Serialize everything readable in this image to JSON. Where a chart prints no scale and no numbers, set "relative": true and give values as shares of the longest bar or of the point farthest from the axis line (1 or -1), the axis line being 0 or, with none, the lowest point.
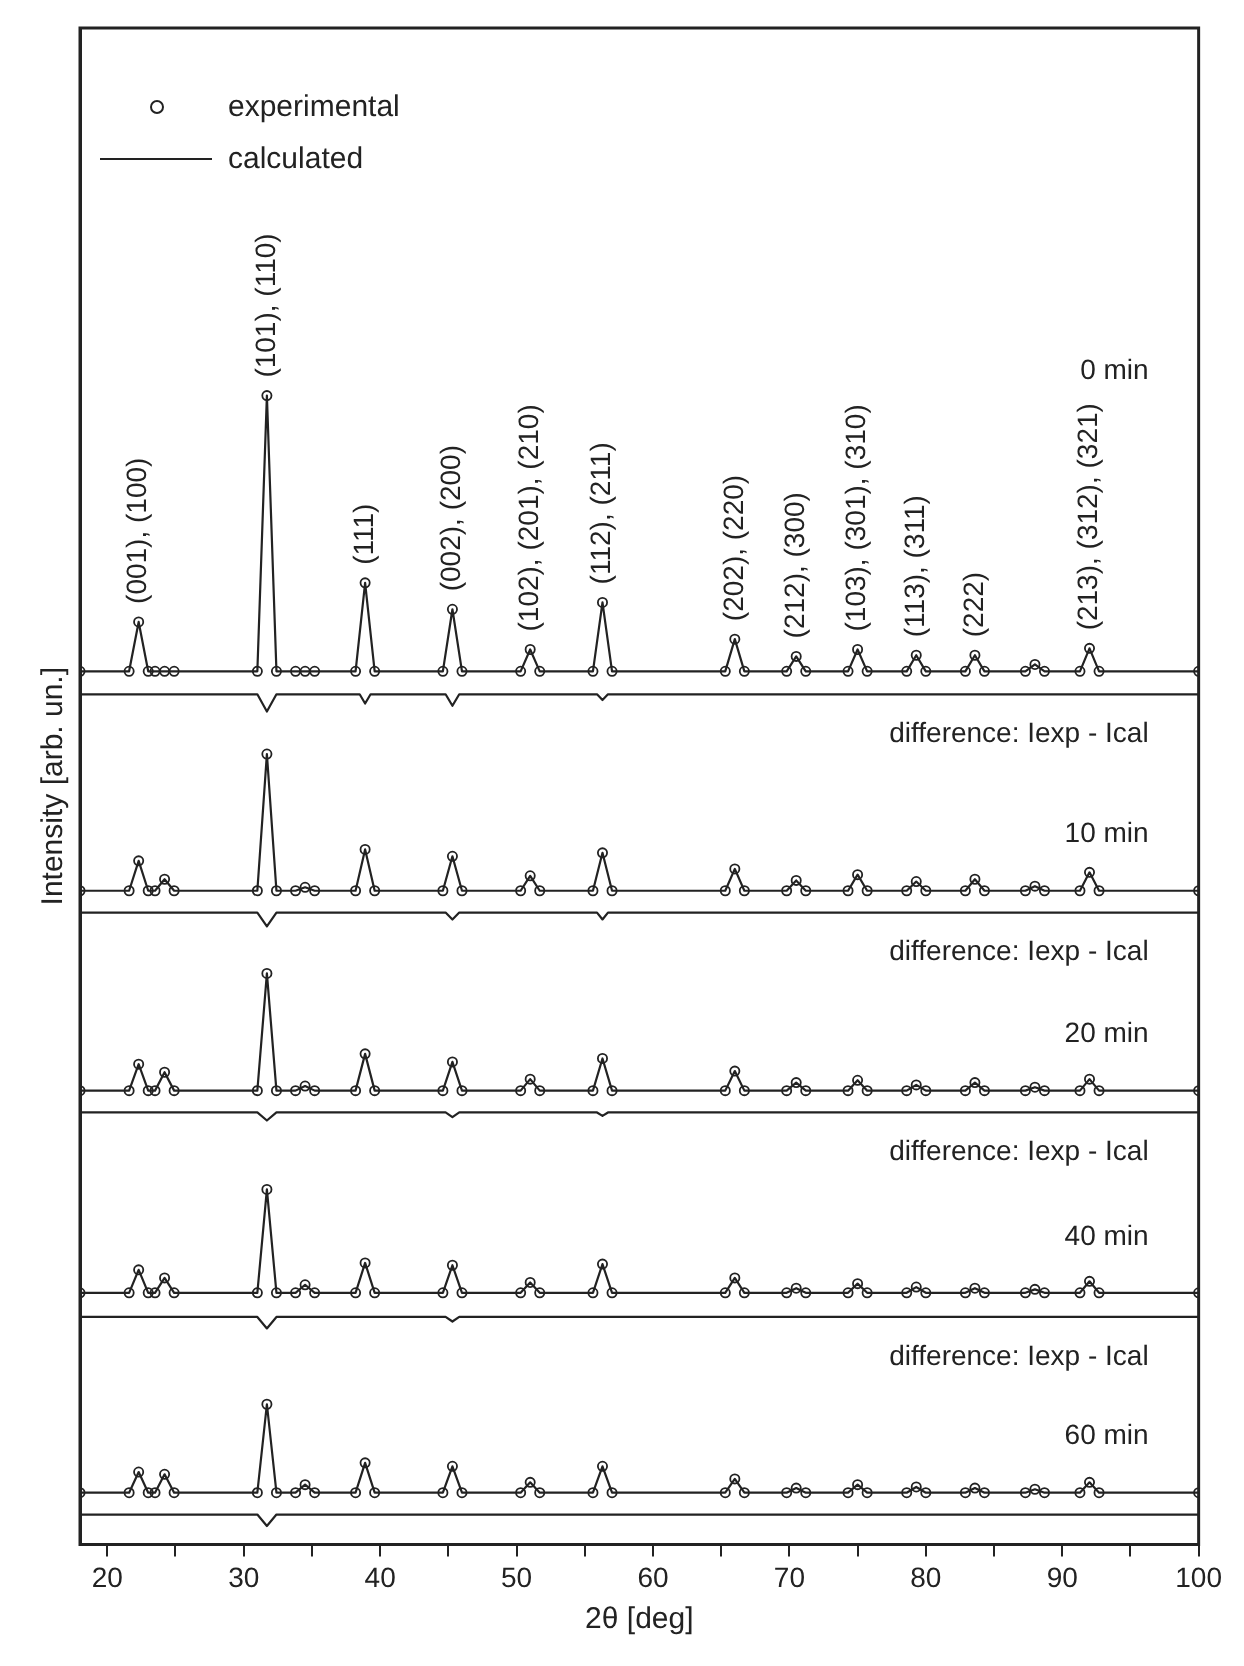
{
  "chart_data": {
    "type": "line",
    "xlabel": "2θ [deg]",
    "ylabel": "Intensity [arb. un.]",
    "relative": true,
    "xlim": [
      18,
      100
    ],
    "xticks": [
      {
        "value": 20,
        "label": "20"
      },
      {
        "value": 25,
        "label": null
      },
      {
        "value": 30,
        "label": "30"
      },
      {
        "value": 35,
        "label": null
      },
      {
        "value": 40,
        "label": "40"
      },
      {
        "value": 45,
        "label": null
      },
      {
        "value": 50,
        "label": "50"
      },
      {
        "value": 55,
        "label": null
      },
      {
        "value": 60,
        "label": "60"
      },
      {
        "value": 65,
        "label": null
      },
      {
        "value": 70,
        "label": "70"
      },
      {
        "value": 75,
        "label": null
      },
      {
        "value": 80,
        "label": "80"
      },
      {
        "value": 85,
        "label": null
      },
      {
        "value": 90,
        "label": "90"
      },
      {
        "value": 95,
        "label": null
      },
      {
        "value": 100,
        "label": "100"
      }
    ],
    "grid": false,
    "legend": "top left",
    "x": [
      18,
      21.6,
      22.3,
      23.0,
      23.5,
      24.2,
      24.9,
      31.0,
      31.7,
      32.4,
      33.8,
      34.5,
      35.2,
      38.2,
      38.9,
      39.6,
      44.6,
      45.3,
      46.0,
      50.3,
      51.0,
      51.7,
      55.6,
      56.3,
      57.0,
      65.3,
      66.0,
      66.7,
      69.8,
      70.5,
      71.2,
      74.3,
      75.0,
      75.7,
      78.6,
      79.3,
      80.0,
      82.9,
      83.6,
      84.3,
      87.3,
      88.0,
      88.7,
      91.3,
      92.0,
      92.7,
      100
    ],
    "series": [
      {
        "name": "experimental",
        "type": "scatter",
        "marker": "circle",
        "color": "#222222",
        "values": [
          0.76,
          0.76,
          0.803,
          0.76,
          0.76,
          0.76,
          0.76,
          0.76,
          1.0,
          0.76,
          0.76,
          0.76,
          0.76,
          0.76,
          0.837,
          0.76,
          0.76,
          0.814,
          0.76,
          0.76,
          0.779,
          0.76,
          0.76,
          0.82,
          0.76,
          0.76,
          0.788,
          0.76,
          0.76,
          0.773,
          0.76,
          0.76,
          0.779,
          0.76,
          0.76,
          0.774,
          0.76,
          0.76,
          0.774,
          0.76,
          0.76,
          0.766,
          0.76,
          0.76,
          0.78,
          0.76,
          0.76
        ]
      },
      {
        "name": "calculated",
        "color": "#222222",
        "values": [
          0.76,
          0.76,
          0.803,
          0.76,
          0.76,
          0.76,
          0.76,
          0.76,
          1.0,
          0.76,
          0.76,
          0.76,
          0.76,
          0.76,
          0.837,
          0.76,
          0.76,
          0.814,
          0.76,
          0.76,
          0.779,
          0.76,
          0.76,
          0.82,
          0.76,
          0.76,
          0.788,
          0.76,
          0.76,
          0.773,
          0.76,
          0.76,
          0.779,
          0.76,
          0.76,
          0.774,
          0.76,
          0.76,
          0.774,
          0.76,
          0.76,
          0.766,
          0.76,
          0.76,
          0.78,
          0.76,
          0.76
        ]
      },
      {
        "color": "#222222",
        "x": [
          18,
          31.0,
          31.7,
          32.4,
          38.5,
          38.9,
          39.3,
          44.8,
          45.3,
          45.8,
          55.9,
          56.3,
          56.7,
          100
        ],
        "values": [
          0.74,
          0.74,
          0.725,
          0.74,
          0.74,
          0.732,
          0.74,
          0.74,
          0.73,
          0.74,
          0.74,
          0.735,
          0.74,
          0.74
        ]
      },
      {
        "type": "scatter",
        "marker": "circle",
        "color": "#222222",
        "values": [
          0.569,
          0.569,
          0.595,
          0.569,
          0.569,
          0.579,
          0.569,
          0.569,
          0.688,
          0.569,
          0.569,
          0.572,
          0.569,
          0.569,
          0.605,
          0.569,
          0.569,
          0.599,
          0.569,
          0.569,
          0.582,
          0.569,
          0.569,
          0.602,
          0.569,
          0.569,
          0.588,
          0.569,
          0.569,
          0.578,
          0.569,
          0.569,
          0.583,
          0.569,
          0.569,
          0.577,
          0.569,
          0.569,
          0.579,
          0.569,
          0.569,
          0.573,
          0.569,
          0.569,
          0.585,
          0.569,
          0.569
        ]
      },
      {
        "color": "#222222",
        "values": [
          0.569,
          0.569,
          0.595,
          0.569,
          0.569,
          0.579,
          0.569,
          0.569,
          0.688,
          0.569,
          0.569,
          0.572,
          0.569,
          0.569,
          0.605,
          0.569,
          0.569,
          0.599,
          0.569,
          0.569,
          0.582,
          0.569,
          0.569,
          0.602,
          0.569,
          0.569,
          0.588,
          0.569,
          0.569,
          0.578,
          0.569,
          0.569,
          0.583,
          0.569,
          0.569,
          0.577,
          0.569,
          0.569,
          0.579,
          0.569,
          0.569,
          0.573,
          0.569,
          0.569,
          0.585,
          0.569,
          0.569
        ]
      },
      {
        "color": "#222222",
        "x": [
          18,
          31.0,
          31.7,
          32.4,
          38.5,
          38.9,
          39.3,
          44.8,
          45.3,
          45.8,
          55.9,
          56.3,
          56.7,
          100
        ],
        "values": [
          0.55,
          0.55,
          0.538,
          0.55,
          0.55,
          0.55,
          0.55,
          0.55,
          0.544,
          0.55,
          0.55,
          0.544,
          0.55,
          0.55
        ]
      },
      {
        "type": "scatter",
        "marker": "circle",
        "color": "#222222",
        "values": [
          0.395,
          0.395,
          0.418,
          0.395,
          0.395,
          0.411,
          0.395,
          0.395,
          0.497,
          0.395,
          0.395,
          0.399,
          0.395,
          0.395,
          0.427,
          0.395,
          0.395,
          0.42,
          0.395,
          0.395,
          0.405,
          0.395,
          0.395,
          0.423,
          0.395,
          0.395,
          0.412,
          0.395,
          0.395,
          0.402,
          0.395,
          0.395,
          0.404,
          0.395,
          0.395,
          0.4,
          0.395,
          0.395,
          0.402,
          0.395,
          0.395,
          0.398,
          0.395,
          0.395,
          0.405,
          0.395,
          0.395
        ]
      },
      {
        "color": "#222222",
        "values": [
          0.395,
          0.395,
          0.418,
          0.395,
          0.395,
          0.411,
          0.395,
          0.395,
          0.497,
          0.395,
          0.395,
          0.399,
          0.395,
          0.395,
          0.427,
          0.395,
          0.395,
          0.42,
          0.395,
          0.395,
          0.405,
          0.395,
          0.395,
          0.423,
          0.395,
          0.395,
          0.412,
          0.395,
          0.395,
          0.402,
          0.395,
          0.395,
          0.404,
          0.395,
          0.395,
          0.4,
          0.395,
          0.395,
          0.402,
          0.395,
          0.395,
          0.398,
          0.395,
          0.395,
          0.405,
          0.395,
          0.395
        ]
      },
      {
        "color": "#222222",
        "x": [
          18,
          31.0,
          31.7,
          32.4,
          38.5,
          38.9,
          39.3,
          44.8,
          45.3,
          45.8,
          55.9,
          56.3,
          56.7,
          100
        ],
        "values": [
          0.376,
          0.376,
          0.369,
          0.376,
          0.376,
          0.376,
          0.376,
          0.376,
          0.372,
          0.376,
          0.376,
          0.373,
          0.376,
          0.376
        ]
      },
      {
        "type": "scatter",
        "marker": "circle",
        "color": "#222222",
        "values": [
          0.219,
          0.219,
          0.239,
          0.219,
          0.219,
          0.232,
          0.219,
          0.219,
          0.309,
          0.219,
          0.219,
          0.226,
          0.219,
          0.219,
          0.245,
          0.219,
          0.219,
          0.243,
          0.219,
          0.219,
          0.228,
          0.219,
          0.219,
          0.244,
          0.219,
          0.219,
          0.232,
          0.219,
          0.219,
          0.223,
          0.219,
          0.219,
          0.227,
          0.219,
          0.219,
          0.224,
          0.219,
          0.219,
          0.223,
          0.219,
          0.219,
          0.222,
          0.219,
          0.219,
          0.229,
          0.219,
          0.219
        ]
      },
      {
        "color": "#222222",
        "values": [
          0.219,
          0.219,
          0.239,
          0.219,
          0.219,
          0.232,
          0.219,
          0.219,
          0.309,
          0.219,
          0.219,
          0.226,
          0.219,
          0.219,
          0.245,
          0.219,
          0.219,
          0.243,
          0.219,
          0.219,
          0.228,
          0.219,
          0.219,
          0.244,
          0.219,
          0.219,
          0.232,
          0.219,
          0.219,
          0.223,
          0.219,
          0.219,
          0.227,
          0.219,
          0.219,
          0.224,
          0.219,
          0.219,
          0.223,
          0.219,
          0.219,
          0.222,
          0.219,
          0.219,
          0.229,
          0.219,
          0.219
        ]
      },
      {
        "color": "#222222",
        "x": [
          18,
          31.0,
          31.7,
          32.4,
          38.5,
          38.9,
          39.3,
          44.8,
          45.3,
          45.8,
          55.9,
          56.3,
          56.7,
          100
        ],
        "values": [
          0.198,
          0.198,
          0.188,
          0.198,
          0.198,
          0.198,
          0.198,
          0.198,
          0.194,
          0.198,
          0.198,
          0.198,
          0.198,
          0.198
        ]
      },
      {
        "type": "scatter",
        "marker": "circle",
        "color": "#222222",
        "values": [
          0.045,
          0.045,
          0.063,
          0.045,
          0.045,
          0.061,
          0.045,
          0.045,
          0.122,
          0.045,
          0.045,
          0.052,
          0.045,
          0.045,
          0.071,
          0.045,
          0.045,
          0.068,
          0.045,
          0.045,
          0.054,
          0.045,
          0.045,
          0.068,
          0.045,
          0.045,
          0.057,
          0.045,
          0.045,
          0.049,
          0.045,
          0.045,
          0.052,
          0.045,
          0.045,
          0.05,
          0.045,
          0.045,
          0.049,
          0.045,
          0.045,
          0.048,
          0.045,
          0.045,
          0.054,
          0.045,
          0.045
        ]
      },
      {
        "color": "#222222",
        "values": [
          0.045,
          0.045,
          0.063,
          0.045,
          0.045,
          0.061,
          0.045,
          0.045,
          0.122,
          0.045,
          0.045,
          0.052,
          0.045,
          0.045,
          0.071,
          0.045,
          0.045,
          0.068,
          0.045,
          0.045,
          0.054,
          0.045,
          0.045,
          0.068,
          0.045,
          0.045,
          0.057,
          0.045,
          0.045,
          0.049,
          0.045,
          0.045,
          0.052,
          0.045,
          0.045,
          0.05,
          0.045,
          0.045,
          0.049,
          0.045,
          0.045,
          0.048,
          0.045,
          0.045,
          0.054,
          0.045,
          0.045
        ]
      },
      {
        "color": "#222222",
        "x": [
          18,
          31.0,
          31.7,
          32.4,
          38.5,
          38.9,
          39.3,
          44.8,
          45.3,
          45.8,
          55.9,
          56.3,
          56.7,
          100
        ],
        "values": [
          0.026,
          0.026,
          0.016,
          0.026,
          0.026,
          0.026,
          0.026,
          0.026,
          0.026,
          0.026,
          0.026,
          0.026,
          0.026,
          0.026
        ]
      }
    ],
    "annotations": [
      {
        "text": "(001), (100)",
        "x": 22.3,
        "y": 0.803
      },
      {
        "text": "(101), (110)",
        "x": 31.7,
        "y": 1.0
      },
      {
        "text": "(111)",
        "x": 38.9,
        "y": 0.837
      },
      {
        "text": "(002), (200)",
        "x": 45.3,
        "y": 0.814
      },
      {
        "text": "(102), (201), (210)",
        "x": 51.0,
        "y": 0.779
      },
      {
        "text": "(112), (211)",
        "x": 56.3,
        "y": 0.82
      },
      {
        "text": "(202), (220)",
        "x": 66.0,
        "y": 0.788
      },
      {
        "text": "(212), (300)",
        "x": 70.5,
        "y": 0.773
      },
      {
        "text": "(103), (301), (310)",
        "x": 75.0,
        "y": 0.779
      },
      {
        "text": "(113), (311)",
        "x": 79.3,
        "y": 0.774
      },
      {
        "text": "(222)",
        "x": 83.6,
        "y": 0.774
      },
      {
        "text": "(213), (312), (321)",
        "x": 92.0,
        "y": 0.78
      },
      "0 min",
      "difference: Iexp - Ical",
      "10 min",
      "difference: Iexp - Ical",
      "20 min",
      "difference: Iexp - Ical",
      "40 min",
      "difference: Iexp - Ical",
      "60 min"
    ]
  }
}
